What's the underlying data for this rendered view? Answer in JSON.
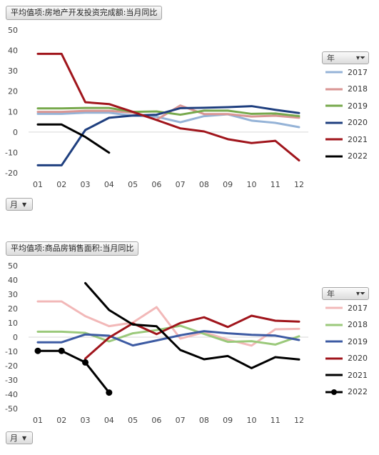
{
  "charts": [
    {
      "title": "平均值项:房地产开发投资完成额:当月同比",
      "field_label": "月",
      "legend_field": "年",
      "chart_data": {
        "type": "line",
        "categories": [
          "01",
          "02",
          "03",
          "04",
          "05",
          "06",
          "07",
          "08",
          "09",
          "10",
          "11",
          "12"
        ],
        "ylim": [
          -20,
          50
        ],
        "yticks": [
          50,
          40,
          30,
          20,
          10,
          0,
          -10,
          -20
        ],
        "grid": false,
        "legend_position": "right",
        "series": [
          {
            "name": "2017",
            "color": "#95b3d7",
            "marker": false,
            "values": [
              8.9,
              8.9,
              9.5,
              9.5,
              8.0,
              7.5,
              4.8,
              7.8,
              8.7,
              5.6,
              4.5,
              2.4
            ]
          },
          {
            "name": "2018",
            "color": "#d99694",
            "marker": false,
            "values": [
              9.9,
              9.9,
              10.4,
              10.4,
              9.5,
              6.0,
              13.0,
              8.8,
              8.8,
              7.6,
              8.0,
              7.0
            ]
          },
          {
            "name": "2019",
            "color": "#77a94d",
            "marker": false,
            "values": [
              11.6,
              11.6,
              11.8,
              11.8,
              9.9,
              10.1,
              8.5,
              10.5,
              10.5,
              8.9,
              9.1,
              7.8
            ]
          },
          {
            "name": "2020",
            "color": "#1f3f7f",
            "marker": false,
            "values": [
              -16.3,
              -16.3,
              1.0,
              7.0,
              8.1,
              8.5,
              11.7,
              11.9,
              12.2,
              12.7,
              10.9,
              9.3
            ]
          },
          {
            "name": "2021",
            "color": "#a0151c",
            "marker": false,
            "values": [
              38.3,
              38.3,
              14.6,
              13.7,
              9.9,
              5.9,
              1.8,
              0.3,
              -3.5,
              -5.4,
              -4.3,
              -13.9
            ]
          },
          {
            "name": "2022",
            "color": "#000000",
            "marker": false,
            "values": [
              3.7,
              3.7,
              -2.4,
              -10.1,
              null,
              null,
              null,
              null,
              null,
              null,
              null,
              null
            ]
          }
        ]
      }
    },
    {
      "title": "平均值项:商品房销售面积:当月同比",
      "field_label": "月",
      "legend_field": "年",
      "chart_data": {
        "type": "line",
        "categories": [
          "01",
          "02",
          "03",
          "04",
          "05",
          "06",
          "07",
          "08",
          "09",
          "10",
          "11",
          "12"
        ],
        "ylim": [
          -50,
          50
        ],
        "yticks": [
          50,
          40,
          30,
          20,
          10,
          0,
          -10,
          -20,
          -30,
          -40,
          -50
        ],
        "grid": false,
        "legend_position": "right",
        "series": [
          {
            "name": "2017",
            "color": "#f2b8b8",
            "marker": false,
            "values": [
              25.0,
              25.0,
              14.7,
              7.7,
              10.2,
              21.0,
              -1.0,
              3.4,
              -1.8,
              -5.9,
              5.5,
              5.8
            ]
          },
          {
            "name": "2018",
            "color": "#9bc97b",
            "marker": false,
            "values": [
              3.8,
              3.8,
              3.0,
              -3.0,
              2.7,
              4.9,
              8.0,
              2.3,
              -3.3,
              -2.8,
              -5.2,
              0.6
            ]
          },
          {
            "name": "2019",
            "color": "#3d5ba3",
            "marker": false,
            "values": [
              -3.6,
              -3.6,
              1.9,
              1.0,
              -5.8,
              -2.3,
              1.3,
              4.2,
              2.7,
              1.6,
              1.1,
              -2.0
            ]
          },
          {
            "name": "2020",
            "color": "#a0151c",
            "marker": false,
            "values": [
              null,
              null,
              -15.0,
              -0.3,
              9.7,
              2.1,
              9.9,
              13.9,
              7.1,
              15.0,
              11.5,
              10.9
            ]
          },
          {
            "name": "2021",
            "color": "#000000",
            "marker": false,
            "values": [
              null,
              null,
              37.8,
              19.0,
              8.8,
              7.6,
              -9.0,
              -15.5,
              -13.2,
              -21.7,
              -14.0,
              -15.6
            ]
          },
          {
            "name": "2022",
            "color": "#000000",
            "marker": true,
            "values": [
              -9.6,
              -9.6,
              -17.7,
              -38.8,
              null,
              null,
              null,
              null,
              null,
              null,
              null,
              null
            ]
          }
        ]
      }
    }
  ]
}
